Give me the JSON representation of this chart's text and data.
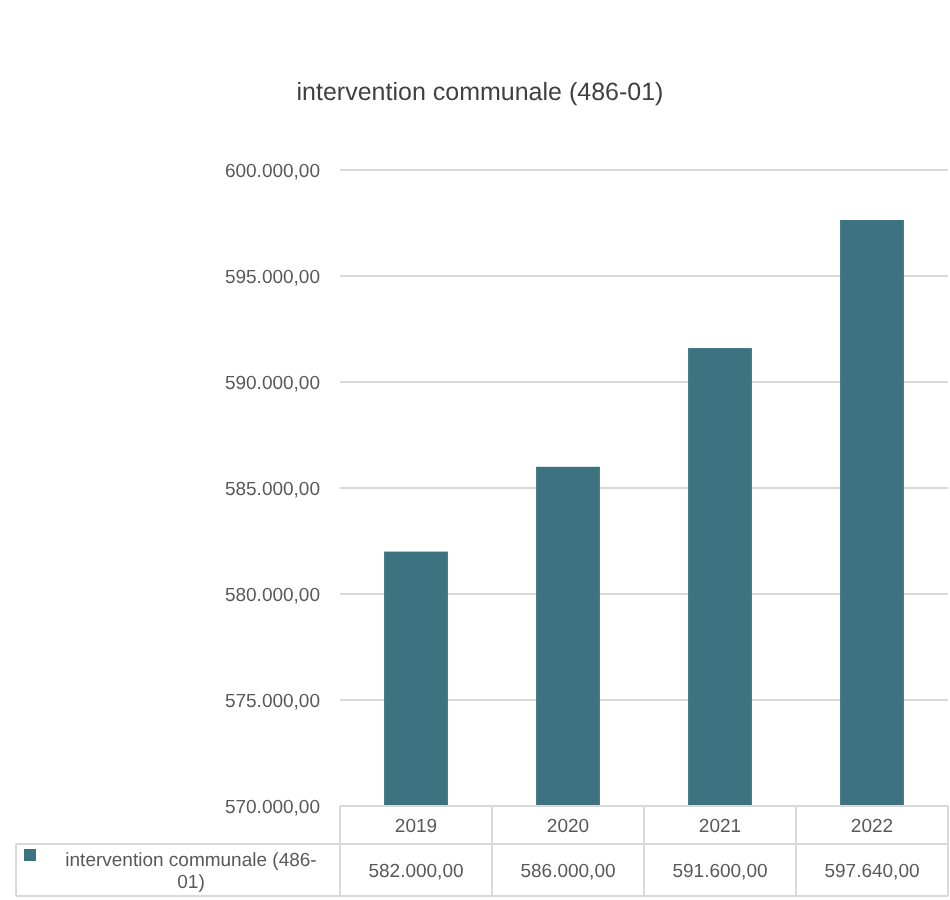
{
  "chart_data": {
    "type": "bar",
    "title": "intervention communale (486-01)",
    "categories": [
      "2019",
      "2020",
      "2021",
      "2022"
    ],
    "series": [
      {
        "name": "intervention communale (486-01)",
        "color": "#3d7280",
        "values": [
          582000,
          586000,
          591600,
          597640
        ],
        "value_labels": [
          "582.000,00",
          "586.000,00",
          "591.600,00",
          "597.640,00"
        ]
      }
    ],
    "ylim": [
      570000,
      600000
    ],
    "yticks": [
      {
        "value": 570000,
        "label": "570.000,00"
      },
      {
        "value": 575000,
        "label": "575.000,00"
      },
      {
        "value": 580000,
        "label": "580.000,00"
      },
      {
        "value": 585000,
        "label": "585.000,00"
      },
      {
        "value": 590000,
        "label": "590.000,00"
      },
      {
        "value": 595000,
        "label": "595.000,00"
      },
      {
        "value": 600000,
        "label": "600.000,00"
      }
    ],
    "grid": "y",
    "legend": "bottom left"
  }
}
